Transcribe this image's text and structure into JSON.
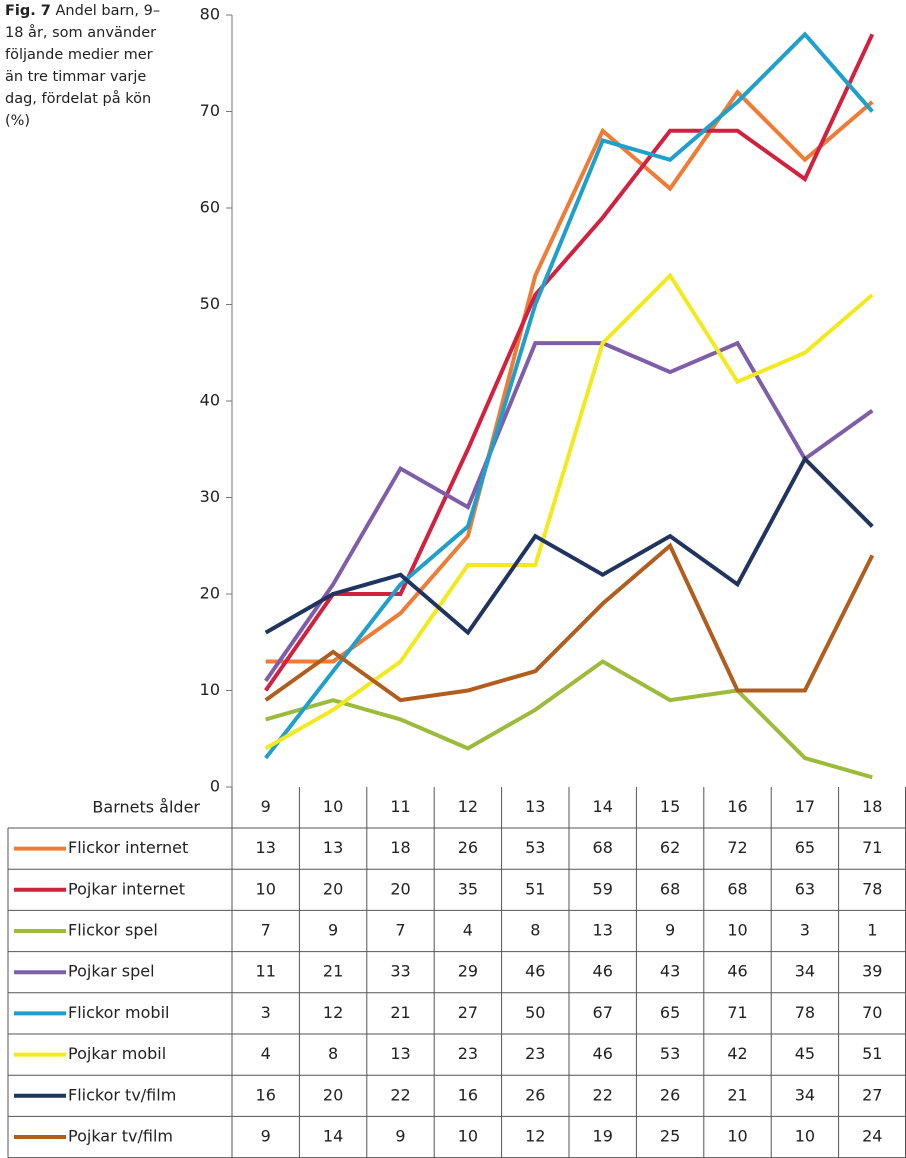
{
  "chart_data": {
    "type": "line",
    "figure_label": "Fig. 7",
    "title": "Andel barn, 9–18 år, som använder följande medier mer än tre timmar varje dag, fördelat på kön (%)",
    "x_label": "Barnets ålder",
    "categories": [
      "9",
      "10",
      "11",
      "12",
      "13",
      "14",
      "15",
      "16",
      "17",
      "18"
    ],
    "ylim": [
      0,
      80
    ],
    "yticks": [
      0,
      10,
      20,
      30,
      40,
      50,
      60,
      70,
      80
    ],
    "grid": false,
    "series": [
      {
        "name": "Flickor internet",
        "color": "#ef7b35",
        "values": [
          13,
          13,
          18,
          26,
          53,
          68,
          62,
          72,
          65,
          71
        ]
      },
      {
        "name": "Pojkar internet",
        "color": "#d2213f",
        "values": [
          10,
          20,
          20,
          35,
          51,
          59,
          68,
          68,
          63,
          78
        ]
      },
      {
        "name": "Flickor spel",
        "color": "#9dbb3b",
        "values": [
          7,
          9,
          7,
          4,
          8,
          13,
          9,
          10,
          3,
          1
        ]
      },
      {
        "name": "Pojkar spel",
        "color": "#7e5ea8",
        "values": [
          11,
          21,
          33,
          29,
          46,
          46,
          43,
          46,
          34,
          39
        ]
      },
      {
        "name": "Flickor mobil",
        "color": "#1fa0cc",
        "values": [
          3,
          12,
          21,
          27,
          50,
          67,
          65,
          71,
          78,
          70
        ]
      },
      {
        "name": "Pojkar mobil",
        "color": "#f2ea1f",
        "values": [
          4,
          8,
          13,
          23,
          23,
          46,
          53,
          42,
          45,
          51
        ]
      },
      {
        "name": "Flickor tv/film",
        "color": "#1f3560",
        "values": [
          16,
          20,
          22,
          16,
          26,
          22,
          26,
          21,
          34,
          27
        ]
      },
      {
        "name": "Pojkar tv/film",
        "color": "#b05d1d",
        "values": [
          9,
          14,
          9,
          10,
          12,
          19,
          25,
          10,
          10,
          24
        ]
      }
    ]
  }
}
